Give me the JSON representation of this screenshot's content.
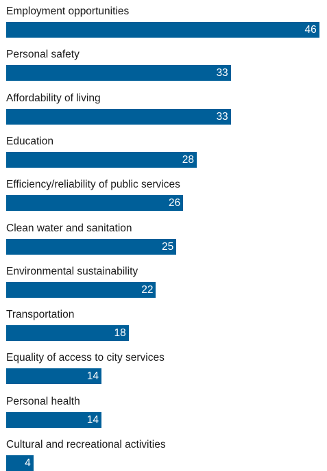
{
  "chart_data": {
    "type": "bar",
    "orientation": "horizontal",
    "categories": [
      "Employment opportunities",
      "Personal safety",
      "Affordability of living",
      "Education",
      "Efficiency/reliability of public services",
      "Clean water and sanitation",
      "Environmental sustainability",
      "Transportation",
      "Equality of access to city services",
      "Personal health",
      "Cultural and recreational activities"
    ],
    "values": [
      46,
      33,
      33,
      28,
      26,
      25,
      22,
      18,
      14,
      14,
      4
    ],
    "bar_color": "#005f99",
    "label_color": "#1a1a1a",
    "value_label_color": "#ffffff",
    "grid": false,
    "legend": "none"
  }
}
